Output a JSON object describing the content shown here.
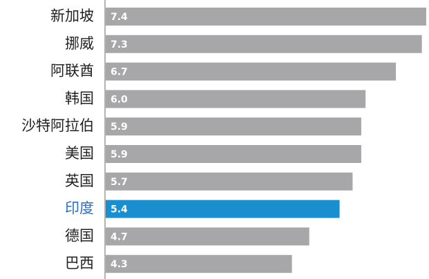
{
  "chart_data": {
    "type": "bar",
    "orientation": "horizontal",
    "categories": [
      "新加坡",
      "挪威",
      "阿联酋",
      "韩国",
      "沙特阿拉伯",
      "美国",
      "英国",
      "印度",
      "德国",
      "巴西"
    ],
    "values": [
      7.4,
      7.3,
      6.7,
      6.0,
      5.9,
      5.9,
      5.7,
      5.4,
      4.7,
      4.3
    ],
    "value_labels": [
      "7.4",
      "7.3",
      "6.7",
      "6.0",
      "5.9",
      "5.9",
      "5.7",
      "5.4",
      "4.7",
      "4.3"
    ],
    "colors": [
      "#a7a7a9",
      "#a7a7a9",
      "#a7a7a9",
      "#a7a7a9",
      "#a7a7a9",
      "#a7a7a9",
      "#a7a7a9",
      "#1a8fd0",
      "#a7a7a9",
      "#a7a7a9"
    ],
    "label_colors": [
      "#222222",
      "#222222",
      "#222222",
      "#222222",
      "#222222",
      "#222222",
      "#222222",
      "#2a6fc9",
      "#222222",
      "#222222"
    ]
  }
}
